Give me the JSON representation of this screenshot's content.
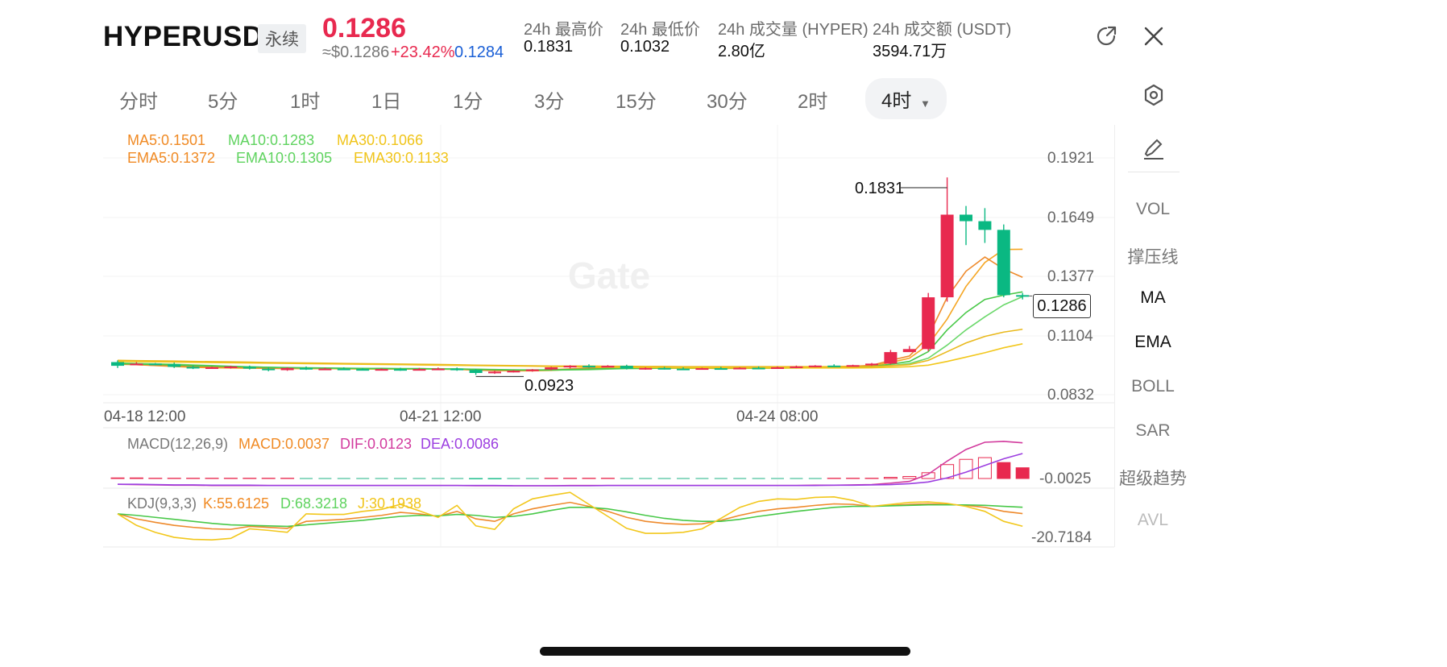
{
  "header": {
    "symbol": "HYPERUSDT",
    "contract_type": "永续",
    "last_price": "0.1286",
    "usd_price": "≈$0.1286",
    "change_pct": "+23.42%",
    "mark_price": "0.1284",
    "stats": [
      {
        "label": "24h 最高价",
        "value": "0.1831"
      },
      {
        "label": "24h 最低价",
        "value": "0.1032"
      },
      {
        "label": "24h 成交量 (HYPER)",
        "value": "2.80亿"
      },
      {
        "label": "24h 成交额 (USDT)",
        "value": "3594.71万"
      }
    ]
  },
  "timeframes": [
    "分时",
    "5分",
    "1时",
    "1日",
    "1分",
    "3分",
    "15分",
    "30分",
    "2时"
  ],
  "active_timeframe": "4时",
  "right_panel": [
    "VOL",
    "撑压线",
    "MA",
    "EMA",
    "BOLL",
    "SAR",
    "超级趋势",
    "AVL"
  ],
  "indicators": {
    "ma5": "MA5:0.1501",
    "ma10": "MA10:0.1283",
    "ma30": "MA30:0.1066",
    "ema5": "EMA5:0.1372",
    "ema10": "EMA10:0.1305",
    "ema30": "EMA30:0.1133",
    "macd_title": "MACD(12,26,9)",
    "macd": "MACD:0.0037",
    "dif": "DIF:0.0123",
    "dea": "DEA:0.0086",
    "kdj_title": "KDJ(9,3,3)",
    "k": "K:55.6125",
    "d": "D:68.3218",
    "j": "J:30.1938"
  },
  "watermark": "Gate",
  "colors": {
    "up": "#e8294f",
    "down": "#0ab882",
    "ma5": "#f5a623",
    "ma10": "#5fd35f",
    "ma30": "#f0c419",
    "macd_line": "#d23a9d",
    "dea_line": "#9c3ee0"
  },
  "chart_data": {
    "type": "candlestick",
    "x_ticks": [
      "04-18 12:00",
      "04-21 12:00",
      "04-24 08:00"
    ],
    "price_ticks": [
      "0.1921",
      "0.1649",
      "0.1377",
      "0.1104",
      "0.0832"
    ],
    "ylim": [
      0.0832,
      0.1921
    ],
    "high_label": "0.1831",
    "low_label": "0.0923",
    "current_price_label": "0.1286",
    "macd_tick": "-0.0025",
    "kdj_tick": "-20.7184",
    "candles": [
      [
        0.0982,
        0.099,
        0.0965,
        0.0955
      ],
      [
        0.0972,
        0.0982,
        0.0975,
        0.097
      ],
      [
        0.0975,
        0.0978,
        0.0972,
        0.0968
      ],
      [
        0.0972,
        0.098,
        0.096,
        0.0955
      ],
      [
        0.096,
        0.0966,
        0.0955,
        0.095
      ],
      [
        0.0955,
        0.0961,
        0.0958,
        0.0951
      ],
      [
        0.0958,
        0.0965,
        0.0962,
        0.0952
      ],
      [
        0.096,
        0.0966,
        0.0952,
        0.0948
      ],
      [
        0.0952,
        0.0957,
        0.0945,
        0.094
      ],
      [
        0.0945,
        0.0958,
        0.0955,
        0.0942
      ],
      [
        0.0955,
        0.0962,
        0.095,
        0.0946
      ],
      [
        0.095,
        0.0956,
        0.0952,
        0.0946
      ],
      [
        0.0952,
        0.0958,
        0.095,
        0.0945
      ],
      [
        0.095,
        0.0955,
        0.0948,
        0.0944
      ],
      [
        0.0948,
        0.0953,
        0.095,
        0.0944
      ],
      [
        0.095,
        0.0956,
        0.0948,
        0.0942
      ],
      [
        0.0948,
        0.0955,
        0.095,
        0.0944
      ],
      [
        0.095,
        0.0957,
        0.0952,
        0.0945
      ],
      [
        0.0952,
        0.0957,
        0.0946,
        0.0942
      ],
      [
        0.0946,
        0.095,
        0.0932,
        0.0923
      ],
      [
        0.0932,
        0.0942,
        0.0938,
        0.0928
      ],
      [
        0.0938,
        0.0945,
        0.0942,
        0.0934
      ],
      [
        0.0942,
        0.095,
        0.0948,
        0.0938
      ],
      [
        0.0948,
        0.096,
        0.0958,
        0.0945
      ],
      [
        0.0958,
        0.0968,
        0.0965,
        0.0953
      ],
      [
        0.0965,
        0.0972,
        0.0962,
        0.0956
      ],
      [
        0.0962,
        0.0968,
        0.0965,
        0.0958
      ],
      [
        0.0965,
        0.097,
        0.0952,
        0.0948
      ],
      [
        0.0952,
        0.0958,
        0.0955,
        0.0947
      ],
      [
        0.0955,
        0.096,
        0.0952,
        0.0948
      ],
      [
        0.0952,
        0.0958,
        0.095,
        0.0945
      ],
      [
        0.095,
        0.0956,
        0.0954,
        0.0947
      ],
      [
        0.0954,
        0.096,
        0.0952,
        0.0948
      ],
      [
        0.0952,
        0.0958,
        0.0956,
        0.095
      ],
      [
        0.0956,
        0.0962,
        0.0955,
        0.0951
      ],
      [
        0.0955,
        0.0962,
        0.0958,
        0.0951
      ],
      [
        0.0958,
        0.0966,
        0.0962,
        0.0954
      ],
      [
        0.0962,
        0.0968,
        0.0966,
        0.0958
      ],
      [
        0.0966,
        0.0972,
        0.0964,
        0.096
      ],
      [
        0.0964,
        0.097,
        0.0968,
        0.0961
      ],
      [
        0.0968,
        0.0978,
        0.0975,
        0.0965
      ],
      [
        0.0975,
        0.1038,
        0.1028,
        0.0972
      ],
      [
        0.1028,
        0.1056,
        0.1042,
        0.103
      ],
      [
        0.1042,
        0.13,
        0.128,
        0.1032
      ],
      [
        0.128,
        0.1831,
        0.166,
        0.126
      ],
      [
        0.166,
        0.17,
        0.163,
        0.152
      ],
      [
        0.163,
        0.169,
        0.159,
        0.153
      ],
      [
        0.159,
        0.1615,
        0.129,
        0.128
      ],
      [
        0.129,
        0.13,
        0.1286,
        0.127
      ]
    ],
    "ma_lines": [
      {
        "name": "MA5",
        "values": [
          0.0975,
          0.097,
          0.0966,
          0.0962,
          0.0958,
          0.0956,
          0.0955,
          0.0954,
          0.0953,
          0.0952,
          0.0952,
          0.0952,
          0.0951,
          0.095,
          0.095,
          0.095,
          0.095,
          0.095,
          0.0949,
          0.0946,
          0.0944,
          0.0942,
          0.0942,
          0.0944,
          0.0948,
          0.0954,
          0.0958,
          0.096,
          0.0958,
          0.0957,
          0.0955,
          0.0954,
          0.0953,
          0.0953,
          0.0954,
          0.0955,
          0.0957,
          0.0959,
          0.0961,
          0.0962,
          0.0965,
          0.098,
          0.1,
          0.1062,
          0.118,
          0.133,
          0.144,
          0.15,
          0.1501
        ]
      },
      {
        "name": "EMA5",
        "values": [
          0.0972,
          0.097,
          0.0967,
          0.0964,
          0.0961,
          0.0959,
          0.0958,
          0.0956,
          0.0954,
          0.0953,
          0.0953,
          0.0952,
          0.0952,
          0.0951,
          0.0951,
          0.095,
          0.095,
          0.095,
          0.0949,
          0.0945,
          0.0943,
          0.0943,
          0.0944,
          0.0947,
          0.0951,
          0.0955,
          0.0958,
          0.0957,
          0.0956,
          0.0955,
          0.0954,
          0.0954,
          0.0953,
          0.0954,
          0.0954,
          0.0955,
          0.0957,
          0.0959,
          0.0961,
          0.0963,
          0.0967,
          0.099,
          0.101,
          0.11,
          0.128,
          0.14,
          0.1465,
          0.141,
          0.1372
        ]
      },
      {
        "name": "MA10",
        "values": [
          0.0978,
          0.0976,
          0.0974,
          0.0972,
          0.0969,
          0.0966,
          0.0963,
          0.096,
          0.0958,
          0.0956,
          0.0955,
          0.0954,
          0.0953,
          0.0952,
          0.0951,
          0.0951,
          0.0951,
          0.095,
          0.095,
          0.0949,
          0.0948,
          0.0946,
          0.0945,
          0.0945,
          0.0946,
          0.0947,
          0.095,
          0.0952,
          0.0953,
          0.0954,
          0.0955,
          0.0955,
          0.0955,
          0.0955,
          0.0955,
          0.0954,
          0.0955,
          0.0956,
          0.0957,
          0.0958,
          0.096,
          0.0966,
          0.0975,
          0.1,
          0.106,
          0.113,
          0.119,
          0.1245,
          0.1283
        ]
      },
      {
        "name": "EMA10",
        "values": [
          0.0975,
          0.0973,
          0.0971,
          0.0969,
          0.0966,
          0.0964,
          0.0962,
          0.096,
          0.0958,
          0.0957,
          0.0956,
          0.0955,
          0.0954,
          0.0953,
          0.0953,
          0.0952,
          0.0952,
          0.0951,
          0.0951,
          0.0949,
          0.0947,
          0.0946,
          0.0946,
          0.0946,
          0.0948,
          0.095,
          0.0952,
          0.0953,
          0.0953,
          0.0954,
          0.0954,
          0.0954,
          0.0954,
          0.0954,
          0.0954,
          0.0955,
          0.0956,
          0.0957,
          0.0958,
          0.0959,
          0.0962,
          0.0972,
          0.0985,
          0.103,
          0.113,
          0.121,
          0.127,
          0.129,
          0.1305
        ]
      },
      {
        "name": "MA30",
        "values": [
          0.0985,
          0.0984,
          0.0983,
          0.0982,
          0.0981,
          0.098,
          0.0979,
          0.0978,
          0.0977,
          0.0976,
          0.0975,
          0.0974,
          0.0973,
          0.0972,
          0.0971,
          0.097,
          0.0969,
          0.0968,
          0.0967,
          0.0966,
          0.0965,
          0.0964,
          0.0963,
          0.0962,
          0.0961,
          0.096,
          0.0959,
          0.0958,
          0.0957,
          0.0956,
          0.0955,
          0.0955,
          0.0955,
          0.0955,
          0.0955,
          0.0955,
          0.0955,
          0.0955,
          0.0955,
          0.0955,
          0.0956,
          0.0958,
          0.0961,
          0.0968,
          0.0985,
          0.1005,
          0.1025,
          0.1048,
          0.1066
        ]
      },
      {
        "name": "EMA30",
        "values": [
          0.099,
          0.0989,
          0.0988,
          0.0987,
          0.0985,
          0.0984,
          0.0983,
          0.0982,
          0.098,
          0.0979,
          0.0978,
          0.0977,
          0.0976,
          0.0975,
          0.0974,
          0.0973,
          0.0972,
          0.0971,
          0.097,
          0.0968,
          0.0967,
          0.0966,
          0.0965,
          0.0964,
          0.0964,
          0.0964,
          0.0963,
          0.0963,
          0.0962,
          0.0962,
          0.0961,
          0.0961,
          0.0961,
          0.0961,
          0.0961,
          0.0961,
          0.0961,
          0.0961,
          0.0961,
          0.0961,
          0.0962,
          0.0965,
          0.097,
          0.099,
          0.103,
          0.107,
          0.11,
          0.112,
          0.1133
        ]
      }
    ],
    "macd_hist": [
      0.0002,
      0.0002,
      0.0001,
      0.0001,
      0.0001,
      0.0001,
      0.0001,
      0.0001,
      0.0001,
      0.0001,
      0.0,
      0.0,
      0.0,
      0.0,
      0.0,
      0.0,
      0.0,
      0.0,
      0.0,
      -0.0001,
      -0.0001,
      0.0,
      0.0,
      0.0001,
      0.0001,
      0.0001,
      0.0001,
      0.0,
      0.0,
      0.0,
      0.0,
      0.0,
      0.0,
      0.0,
      0.0,
      0.0,
      0.0,
      0.0,
      0.0001,
      0.0001,
      0.0001,
      0.0004,
      0.0007,
      0.002,
      0.0048,
      0.0066,
      0.0072,
      0.0055,
      0.0037
    ],
    "dif": [
      -0.002,
      -0.0021,
      -0.0022,
      -0.0023,
      -0.0023,
      -0.0024,
      -0.0024,
      -0.0024,
      -0.0024,
      -0.0024,
      -0.0024,
      -0.0024,
      -0.0024,
      -0.0024,
      -0.0024,
      -0.0024,
      -0.0024,
      -0.0024,
      -0.0024,
      -0.0025,
      -0.0025,
      -0.0025,
      -0.0025,
      -0.0025,
      -0.0024,
      -0.0024,
      -0.0024,
      -0.0024,
      -0.0024,
      -0.0024,
      -0.0024,
      -0.0024,
      -0.0024,
      -0.0024,
      -0.0024,
      -0.0024,
      -0.0024,
      -0.0023,
      -0.0023,
      -0.0022,
      -0.0021,
      -0.0016,
      -0.001,
      0.0015,
      0.006,
      0.01,
      0.0125,
      0.0128,
      0.0123
    ],
    "dea": [
      -0.002,
      -0.002,
      -0.0021,
      -0.0022,
      -0.0022,
      -0.0023,
      -0.0023,
      -0.0023,
      -0.0024,
      -0.0024,
      -0.0024,
      -0.0024,
      -0.0024,
      -0.0024,
      -0.0024,
      -0.0024,
      -0.0024,
      -0.0024,
      -0.0024,
      -0.0024,
      -0.0024,
      -0.0025,
      -0.0025,
      -0.0025,
      -0.0025,
      -0.0025,
      -0.0024,
      -0.0024,
      -0.0024,
      -0.0024,
      -0.0024,
      -0.0024,
      -0.0024,
      -0.0024,
      -0.0024,
      -0.0024,
      -0.0024,
      -0.0024,
      -0.0023,
      -0.0023,
      -0.0022,
      -0.0021,
      -0.0018,
      -0.0012,
      0.0002,
      0.0022,
      0.0045,
      0.0068,
      0.0086
    ],
    "kdj_k": [
      55,
      45,
      38,
      32,
      28,
      25,
      24,
      30,
      28,
      26,
      40,
      42,
      44,
      48,
      52,
      58,
      55,
      50,
      60,
      45,
      40,
      55,
      65,
      72,
      78,
      70,
      60,
      48,
      40,
      36,
      34,
      35,
      42,
      52,
      60,
      65,
      68,
      72,
      75,
      74,
      70,
      72,
      74,
      75,
      74,
      72,
      68,
      60,
      55.6
    ],
    "kdj_d": [
      55,
      52,
      48,
      44,
      40,
      36,
      33,
      32,
      31,
      30,
      33,
      36,
      39,
      42,
      46,
      50,
      52,
      51,
      54,
      52,
      48,
      50,
      55,
      62,
      68,
      68,
      65,
      59,
      52,
      46,
      42,
      40,
      40,
      44,
      50,
      55,
      60,
      64,
      68,
      70,
      70,
      71,
      72,
      73,
      73,
      73,
      72,
      70,
      68.3
    ],
    "kdj_j": [
      55,
      32,
      18,
      8,
      4,
      3,
      6,
      25,
      22,
      18,
      55,
      54,
      54,
      60,
      64,
      74,
      61,
      48,
      72,
      31,
      24,
      65,
      85,
      92,
      98,
      74,
      50,
      26,
      16,
      16,
      18,
      25,
      46,
      68,
      80,
      85,
      84,
      88,
      89,
      82,
      70,
      74,
      78,
      79,
      76,
      70,
      60,
      40,
      30.2
    ]
  }
}
